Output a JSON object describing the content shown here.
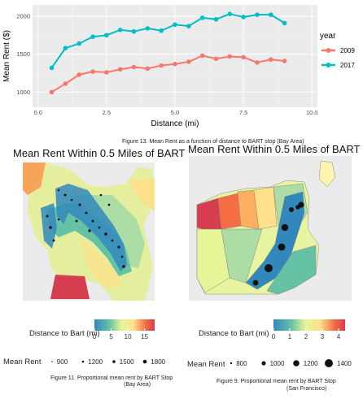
{
  "chart_data": [
    {
      "type": "line",
      "xlabel": "Distance (mi)",
      "ylabel": "Mean Rent ($)",
      "xlim": [
        -0.2,
        10.2
      ],
      "ylim": [
        800,
        2150
      ],
      "xticks": [
        "0.0",
        "2.5",
        "5.0",
        "7.5",
        "10.0"
      ],
      "yticks": [
        "1000",
        "1500",
        "2000"
      ],
      "legend_title": "year",
      "legend_position": "right",
      "grid": true,
      "series": [
        {
          "name": "2009",
          "color": "#f8766d",
          "x": [
            0.5,
            1.0,
            1.5,
            2.0,
            2.5,
            3.0,
            3.5,
            4.0,
            4.5,
            5.0,
            5.5,
            6.0,
            6.5,
            7.0,
            7.5,
            8.0,
            8.5,
            9.0
          ],
          "values": [
            1000,
            1110,
            1230,
            1270,
            1260,
            1300,
            1330,
            1310,
            1350,
            1370,
            1400,
            1480,
            1440,
            1470,
            1460,
            1390,
            1430,
            1410
          ]
        },
        {
          "name": "2017",
          "color": "#00bfc4",
          "x": [
            0.5,
            1.0,
            1.5,
            2.0,
            2.5,
            3.0,
            3.5,
            4.0,
            4.5,
            5.0,
            5.5,
            6.0,
            6.5,
            7.0,
            7.5,
            8.0,
            8.5,
            9.0
          ],
          "values": [
            1320,
            1580,
            1640,
            1730,
            1750,
            1820,
            1800,
            1840,
            1810,
            1890,
            1870,
            1980,
            1960,
            2030,
            1990,
            2020,
            2020,
            1910
          ]
        }
      ],
      "caption": "Figure 13. Mean Rent as a function of distance to BART stop (Bay Area)"
    },
    {
      "type": "heatmap",
      "title": "Mean Rent Within 0.5 Miles of BART",
      "colorbar_label": "Distance to Bart (mi)",
      "colorbar_ticks": [
        "0",
        "5",
        "10",
        "15"
      ],
      "colorbar_range": [
        0,
        18
      ],
      "size_legend_label": "Mean Rent",
      "size_legend_values": [
        "900",
        "1200",
        "1500",
        "1800"
      ],
      "caption_line1": "Figure 11. Proportional mean rent by BART Stop",
      "caption_line2": "(Bay Area)"
    },
    {
      "type": "heatmap",
      "title": "Mean Rent Within 0.5 Miles of BART",
      "colorbar_label": "Distance to Bart (mi)",
      "colorbar_ticks": [
        "0",
        "1",
        "2",
        "3",
        "4"
      ],
      "colorbar_range": [
        0,
        4.4
      ],
      "size_legend_label": "Mean Rent",
      "size_legend_values": [
        "800",
        "1000",
        "1200",
        "1400"
      ],
      "caption_line1": "Figure 9. Proportional mean rent by BART Stop",
      "caption_line2": "(San Francisco)"
    }
  ]
}
